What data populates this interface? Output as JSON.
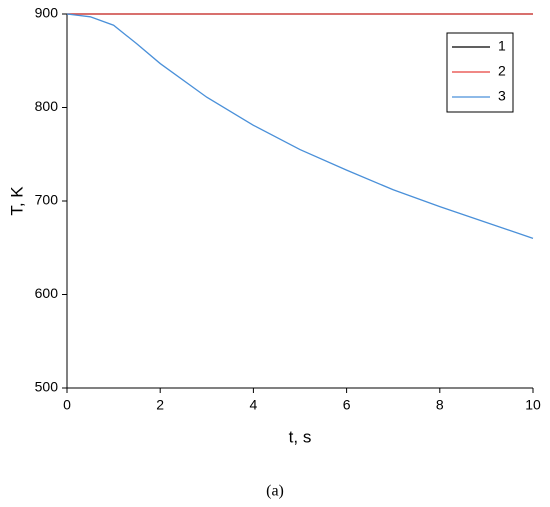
{
  "chart_data": {
    "type": "line",
    "x_label": "t, s",
    "y_label": "T, K",
    "caption": "(a)",
    "x": [
      0,
      0.5,
      1,
      1.5,
      2,
      3,
      4,
      5,
      6,
      7,
      8,
      9,
      10
    ],
    "series": [
      {
        "name": "1",
        "color": "#000000",
        "values": [
          900,
          900,
          900,
          900,
          900,
          900,
          900,
          900,
          900,
          900,
          900,
          900,
          900
        ]
      },
      {
        "name": "2",
        "color": "#e8413c",
        "values": [
          900,
          900,
          900,
          900,
          900,
          900,
          900,
          900,
          900,
          900,
          900,
          900,
          900
        ]
      },
      {
        "name": "3",
        "color": "#4a90d9",
        "values": [
          900,
          897,
          888,
          868,
          847,
          811,
          781,
          755,
          733,
          712,
          694,
          677,
          660
        ]
      }
    ],
    "xlim": [
      0,
      10
    ],
    "xticks": [
      0,
      2,
      4,
      6,
      8,
      10
    ],
    "ylim": [
      500,
      900
    ],
    "yticks": [
      500,
      600,
      700,
      800,
      900
    ],
    "legend": "upper-right"
  }
}
